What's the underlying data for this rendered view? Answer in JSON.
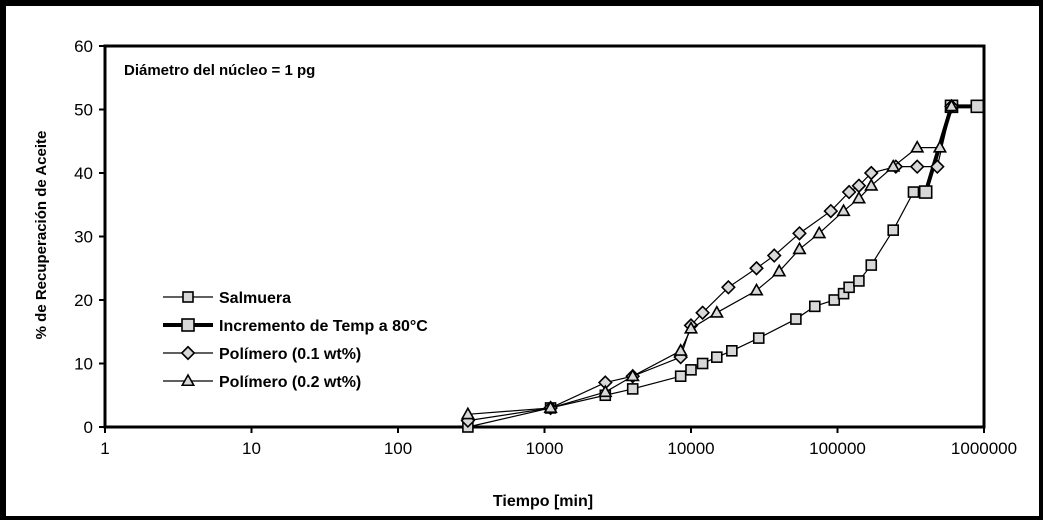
{
  "chart_data": {
    "type": "scatter",
    "title": "",
    "annotation": "Diámetro del núcleo = 1 pg",
    "xlabel": "Tiempo [min]",
    "ylabel": "% de Recuperación de Aceite",
    "xscale": "log",
    "xlim": [
      1,
      1000000
    ],
    "ylim": [
      0,
      60
    ],
    "x_ticks": [
      "1",
      "10",
      "100",
      "1000",
      "10000",
      "100000",
      "1000000"
    ],
    "y_ticks": [
      "0",
      "10",
      "20",
      "30",
      "40",
      "50",
      "60"
    ],
    "grid": false,
    "legend_position": "left",
    "series": [
      {
        "name": "Salmuera",
        "marker": "square",
        "color": "#000000",
        "x": [
          300,
          1100,
          2600,
          4000,
          8500,
          10000,
          12000,
          15000,
          19000,
          29000,
          52000,
          70000,
          95000,
          110000,
          120000,
          140000,
          170000,
          240000,
          330000,
          400000
        ],
        "y": [
          0,
          3,
          5,
          6,
          8,
          9,
          10,
          11,
          12,
          14,
          17,
          19,
          20,
          21,
          22,
          23,
          25.5,
          31,
          37,
          37
        ]
      },
      {
        "name": "Incremento de Temp a 80°C",
        "marker": "square",
        "line": "thick",
        "color": "#000000",
        "x": [
          400000,
          600000,
          900000
        ],
        "y": [
          37,
          50.5,
          50.5
        ]
      },
      {
        "name": "Polímero (0.1 wt%)",
        "marker": "diamond",
        "color": "#000000",
        "x": [
          300,
          1100,
          2600,
          4000,
          8500,
          10000,
          12000,
          18000,
          28000,
          37000,
          55000,
          90000,
          120000,
          140000,
          170000,
          250000,
          350000,
          480000,
          600000
        ],
        "y": [
          1,
          3,
          7,
          8,
          11,
          16,
          18,
          22,
          25,
          27,
          30.5,
          34,
          37,
          38,
          40,
          41,
          41,
          41,
          50.5
        ]
      },
      {
        "name": "Polímero (0.2 wt%)",
        "marker": "triangle",
        "color": "#000000",
        "x": [
          300,
          1100,
          2600,
          4000,
          8500,
          10000,
          15000,
          28000,
          40000,
          55000,
          75000,
          110000,
          140000,
          170000,
          240000,
          350000,
          500000,
          600000
        ],
        "y": [
          2,
          3,
          5.5,
          8,
          12,
          15.5,
          18,
          21.5,
          24.5,
          28,
          30.5,
          34,
          36,
          38,
          41,
          44,
          44,
          50.5
        ]
      }
    ]
  }
}
